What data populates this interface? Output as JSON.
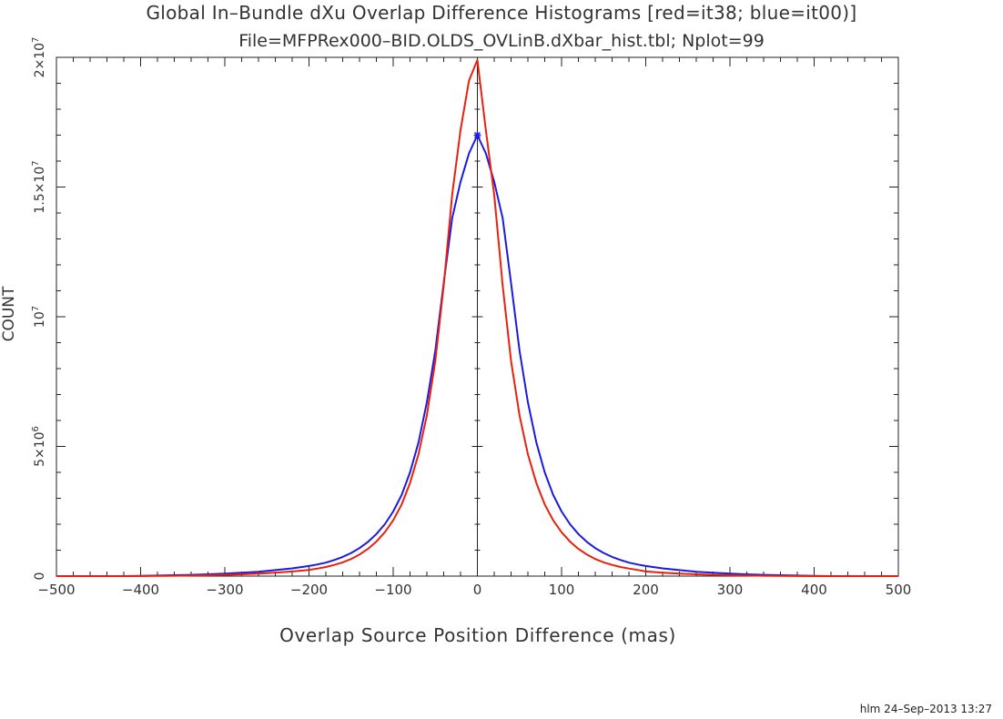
{
  "chart_data": {
    "type": "line",
    "title": "Global In–Bundle dXu Overlap Difference Histograms [red=it38; blue=it00)]",
    "subtitle": "File=MFPRex000–BID.OLDS_OVLinB.dXbar_hist.tbl; Nplot=99",
    "xlabel": "Overlap Source Position Difference (mas)",
    "ylabel": "COUNT",
    "xlim": [
      -500,
      500
    ],
    "ylim": [
      0,
      20000000
    ],
    "x_ticks": [
      -500,
      -400,
      -300,
      -200,
      -100,
      0,
      100,
      200,
      300,
      400,
      500
    ],
    "x_tick_labels": [
      "−500",
      "−400",
      "−300",
      "−200",
      "−100",
      "0",
      "100",
      "200",
      "300",
      "400",
      "500"
    ],
    "y_ticks": [
      0,
      5000000,
      10000000,
      15000000,
      20000000
    ],
    "y_tick_labels": [
      {
        "mant": "0",
        "exp": ""
      },
      {
        "mant": "5×10",
        "exp": "6"
      },
      {
        "mant": "10",
        "exp": "7"
      },
      {
        "mant": "1.5×10",
        "exp": "7"
      },
      {
        "mant": "2×10",
        "exp": "7"
      }
    ],
    "grid": false,
    "x": [
      -500,
      -480,
      -460,
      -440,
      -420,
      -400,
      -380,
      -360,
      -340,
      -320,
      -300,
      -280,
      -260,
      -240,
      -220,
      -200,
      -190,
      -180,
      -170,
      -160,
      -150,
      -140,
      -130,
      -120,
      -110,
      -100,
      -90,
      -80,
      -70,
      -60,
      -50,
      -40,
      -30,
      -20,
      -10,
      0,
      10,
      20,
      30,
      40,
      50,
      60,
      70,
      80,
      90,
      100,
      110,
      120,
      130,
      140,
      150,
      160,
      170,
      180,
      190,
      200,
      220,
      240,
      260,
      280,
      300,
      320,
      340,
      360,
      380,
      400,
      420,
      440,
      460,
      480,
      500
    ],
    "series": [
      {
        "color": "#e8200c",
        "values": [
          0,
          0,
          0,
          0,
          0,
          5000,
          10000,
          15000,
          25000,
          35000,
          50000,
          70000,
          95000,
          130000,
          180000,
          240000,
          290000,
          350000,
          430000,
          530000,
          660000,
          830000,
          1050000,
          1330000,
          1690000,
          2150000,
          2760000,
          3590000,
          4700000,
          6200000,
          8300000,
          11200000,
          14700000,
          17200000,
          19100000,
          19900000,
          17200000,
          14700000,
          11200000,
          8300000,
          6200000,
          4700000,
          3590000,
          2760000,
          2150000,
          1690000,
          1330000,
          1050000,
          830000,
          660000,
          530000,
          430000,
          350000,
          290000,
          240000,
          180000,
          130000,
          95000,
          70000,
          50000,
          35000,
          25000,
          15000,
          10000,
          5000,
          0,
          0,
          0,
          0,
          0,
          0
        ]
      },
      {
        "color": "#1a1ae0",
        "values": [
          0,
          0,
          0,
          0,
          0,
          10000,
          20000,
          35000,
          50000,
          70000,
          95000,
          130000,
          170000,
          230000,
          300000,
          390000,
          450000,
          520000,
          620000,
          740000,
          890000,
          1080000,
          1320000,
          1620000,
          2000000,
          2490000,
          3130000,
          4000000,
          5150000,
          6700000,
          8700000,
          11300000,
          13800000,
          15200000,
          16300000,
          17000000,
          16300000,
          15200000,
          13800000,
          11300000,
          8700000,
          6700000,
          5150000,
          4000000,
          3130000,
          2490000,
          2000000,
          1620000,
          1320000,
          1080000,
          890000,
          740000,
          620000,
          520000,
          450000,
          390000,
          300000,
          230000,
          170000,
          130000,
          95000,
          70000,
          50000,
          35000,
          20000,
          10000,
          0,
          0,
          0,
          0,
          0
        ]
      }
    ]
  },
  "footer": "hlm 24–Sep–2013 13:27"
}
